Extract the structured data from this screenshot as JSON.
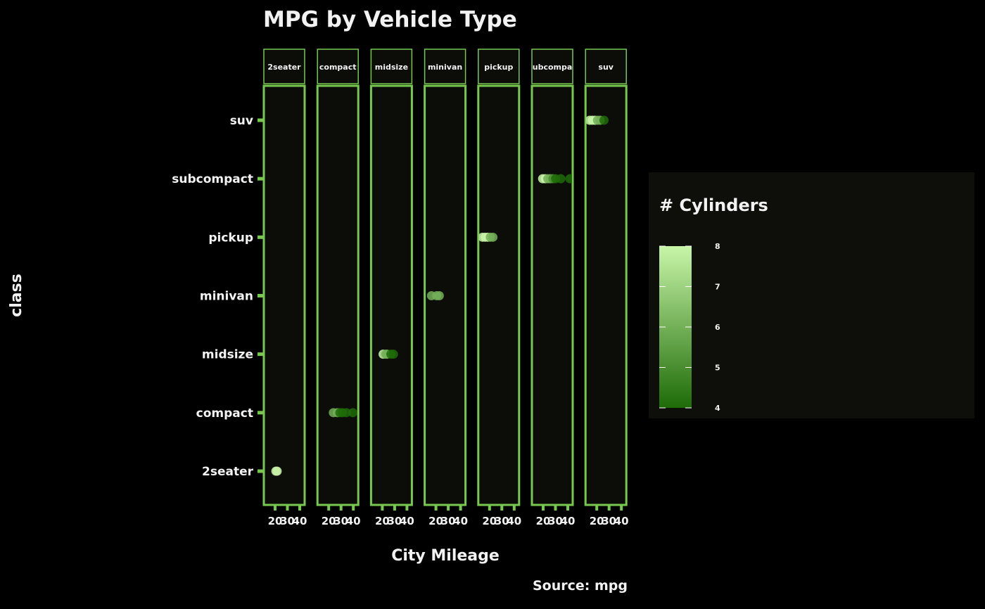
{
  "colors": {
    "background": "#000000",
    "panel_fill": "#0c0c08",
    "panel_border": "#78c850",
    "text": "#f2f2f2",
    "legend_bg": "#0e0e0a",
    "low": "#1e6b08",
    "high": "#c8f5a8"
  },
  "chart_data": {
    "type": "scatter",
    "title": "MPG by Vehicle Type",
    "xlabel": "City Mileage",
    "ylabel": "class",
    "caption": "Source: mpg",
    "x_ticks": [
      20,
      30,
      40
    ],
    "xlim": [
      9,
      35
    ],
    "categories": [
      "2seater",
      "compact",
      "midsize",
      "minivan",
      "pickup",
      "subcompact",
      "suv"
    ],
    "facets": [
      "2seater",
      "compact",
      "midsize",
      "minivan",
      "pickup",
      "subcompact",
      "suv"
    ],
    "facet_strip_labels": [
      "2seater",
      "compact",
      "midsize",
      "minivan",
      "pickup",
      "subcompac",
      "suv"
    ],
    "color_legend": {
      "title": "# Cylinders",
      "min": 4,
      "max": 8,
      "ticks": [
        8,
        7,
        6,
        5,
        4
      ]
    },
    "points": [
      {
        "class": "2seater",
        "cty": 15,
        "cyl": 8
      },
      {
        "class": "2seater",
        "cty": 16,
        "cyl": 8
      },
      {
        "class": "compact",
        "cty": 18,
        "cyl": 6
      },
      {
        "class": "compact",
        "cty": 21,
        "cyl": 6
      },
      {
        "class": "compact",
        "cty": 23,
        "cyl": 4
      },
      {
        "class": "compact",
        "cty": 25,
        "cyl": 4
      },
      {
        "class": "compact",
        "cty": 28,
        "cyl": 4
      },
      {
        "class": "compact",
        "cty": 33,
        "cyl": 4
      },
      {
        "class": "midsize",
        "cty": 15,
        "cyl": 8
      },
      {
        "class": "midsize",
        "cty": 17,
        "cyl": 6
      },
      {
        "class": "midsize",
        "cty": 18,
        "cyl": 6
      },
      {
        "class": "midsize",
        "cty": 21,
        "cyl": 4
      },
      {
        "class": "midsize",
        "cty": 23,
        "cyl": 4
      },
      {
        "class": "minivan",
        "cty": 11,
        "cyl": 6
      },
      {
        "class": "minivan",
        "cty": 15,
        "cyl": 6
      },
      {
        "class": "minivan",
        "cty": 17,
        "cyl": 6
      },
      {
        "class": "pickup",
        "cty": 9,
        "cyl": 8
      },
      {
        "class": "pickup",
        "cty": 11,
        "cyl": 8
      },
      {
        "class": "pickup",
        "cty": 13,
        "cyl": 8
      },
      {
        "class": "pickup",
        "cty": 15,
        "cyl": 6
      },
      {
        "class": "pickup",
        "cty": 17,
        "cyl": 6
      },
      {
        "class": "subcompact",
        "cty": 14,
        "cyl": 8
      },
      {
        "class": "subcompact",
        "cty": 16,
        "cyl": 8
      },
      {
        "class": "subcompact",
        "cty": 18,
        "cyl": 6
      },
      {
        "class": "subcompact",
        "cty": 20,
        "cyl": 6
      },
      {
        "class": "subcompact",
        "cty": 22,
        "cyl": 5
      },
      {
        "class": "subcompact",
        "cty": 24,
        "cyl": 4
      },
      {
        "class": "subcompact",
        "cty": 28,
        "cyl": 4
      },
      {
        "class": "subcompact",
        "cty": 35,
        "cyl": 4
      },
      {
        "class": "suv",
        "cty": 9,
        "cyl": 8
      },
      {
        "class": "suv",
        "cty": 11,
        "cyl": 8
      },
      {
        "class": "suv",
        "cty": 13,
        "cyl": 8
      },
      {
        "class": "suv",
        "cty": 15,
        "cyl": 6
      },
      {
        "class": "suv",
        "cty": 17,
        "cyl": 6
      },
      {
        "class": "suv",
        "cty": 20,
        "cyl": 4
      }
    ]
  }
}
